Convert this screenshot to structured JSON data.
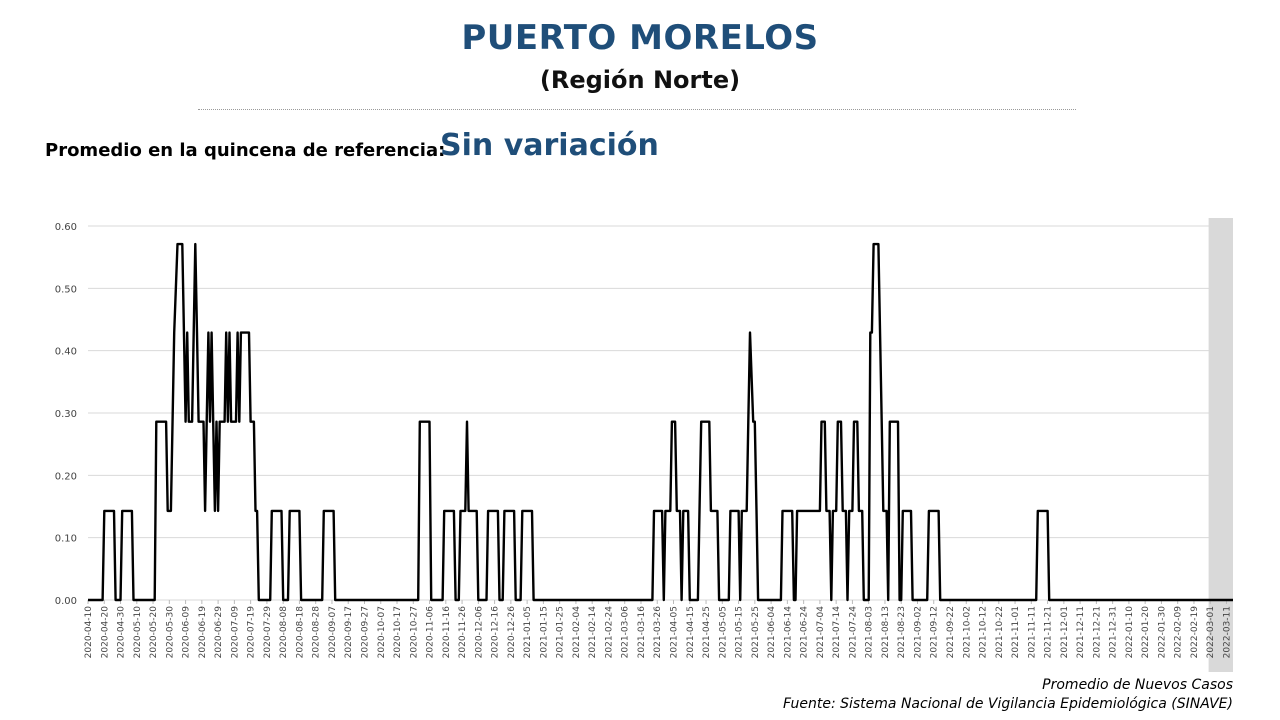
{
  "header": {
    "title": "PUERTO MORELOS",
    "subtitle": "(Región Norte)",
    "reference_label": "Promedio en la quincena de referencia:",
    "reference_value": "Sin variación"
  },
  "footer": {
    "series_label": "Promedio de Nuevos Casos",
    "source": "Fuente: Sistema Nacional de Vigilancia Epidemiológica (SINAVE)"
  },
  "colors": {
    "title": "#1f4e79",
    "line": "#000000",
    "grid": "#d9d9d9",
    "shade": "#d9d9d9"
  },
  "chart_data": {
    "type": "line",
    "title": "",
    "xlabel": "",
    "ylabel": "",
    "ylim": [
      0,
      0.6
    ],
    "yticks": [
      "0.00",
      "0.10",
      "0.20",
      "0.30",
      "0.40",
      "0.50",
      "0.60"
    ],
    "x_range": [
      "2020-04-10",
      "2022-03-15"
    ],
    "shaded_region": [
      "2022-02-28",
      "2022-03-15"
    ],
    "grid": "horizontal",
    "xtick_labels": [
      "2020-04-10",
      "2020-04-20",
      "2020-04-30",
      "2020-05-10",
      "2020-05-20",
      "2020-05-30",
      "2020-06-09",
      "2020-06-19",
      "2020-06-29",
      "2020-07-09",
      "2020-07-19",
      "2020-07-29",
      "2020-08-08",
      "2020-08-18",
      "2020-08-28",
      "2020-09-07",
      "2020-09-17",
      "2020-09-27",
      "2020-10-07",
      "2020-10-17",
      "2020-10-27",
      "2020-11-06",
      "2020-11-16",
      "2020-11-26",
      "2020-12-06",
      "2020-12-16",
      "2020-12-26",
      "2021-01-05",
      "2021-01-15",
      "2021-01-25",
      "2021-02-04",
      "2021-02-14",
      "2021-02-24",
      "2021-03-06",
      "2021-03-16",
      "2021-03-26",
      "2021-04-05",
      "2021-04-15",
      "2021-04-25",
      "2021-05-05",
      "2021-05-15",
      "2021-05-25",
      "2021-06-04",
      "2021-06-14",
      "2021-06-24",
      "2021-07-04",
      "2021-07-14",
      "2021-07-24",
      "2021-08-03",
      "2021-08-13",
      "2021-08-23",
      "2021-09-02",
      "2021-09-12",
      "2021-09-22",
      "2021-10-02",
      "2021-10-12",
      "2021-10-22",
      "2021-11-01",
      "2021-11-11",
      "2021-11-21",
      "2021-12-01",
      "2021-12-11",
      "2021-12-21",
      "2021-12-31",
      "2022-01-10",
      "2022-01-20",
      "2022-01-30",
      "2022-02-09",
      "2022-02-19",
      "2022-03-01",
      "2022-03-11"
    ],
    "series": [
      {
        "values": [
          [
            "2020-04-10",
            0
          ],
          [
            "2020-04-19",
            0
          ],
          [
            "2020-04-20",
            0.143
          ],
          [
            "2020-04-26",
            0.143
          ],
          [
            "2020-04-27",
            0
          ],
          [
            "2020-04-30",
            0
          ],
          [
            "2020-05-01",
            0.143
          ],
          [
            "2020-05-07",
            0.143
          ],
          [
            "2020-05-08",
            0
          ],
          [
            "2020-05-21",
            0
          ],
          [
            "2020-05-22",
            0.286
          ],
          [
            "2020-05-28",
            0.286
          ],
          [
            "2020-05-29",
            0.143
          ],
          [
            "2020-05-31",
            0.143
          ],
          [
            "2020-06-02",
            0.429
          ],
          [
            "2020-06-04",
            0.571
          ],
          [
            "2020-06-07",
            0.571
          ],
          [
            "2020-06-09",
            0.286
          ],
          [
            "2020-06-10",
            0.429
          ],
          [
            "2020-06-11",
            0.286
          ],
          [
            "2020-06-13",
            0.286
          ],
          [
            "2020-06-14",
            0.429
          ],
          [
            "2020-06-15",
            0.571
          ],
          [
            "2020-06-16",
            0.429
          ],
          [
            "2020-06-17",
            0.286
          ],
          [
            "2020-06-20",
            0.286
          ],
          [
            "2020-06-21",
            0.143
          ],
          [
            "2020-06-22",
            0.286
          ],
          [
            "2020-06-23",
            0.429
          ],
          [
            "2020-06-24",
            0.286
          ],
          [
            "2020-06-25",
            0.429
          ],
          [
            "2020-06-26",
            0.286
          ],
          [
            "2020-06-27",
            0.143
          ],
          [
            "2020-06-28",
            0.286
          ],
          [
            "2020-06-29",
            0.143
          ],
          [
            "2020-06-30",
            0.286
          ],
          [
            "2020-07-03",
            0.286
          ],
          [
            "2020-07-04",
            0.429
          ],
          [
            "2020-07-05",
            0.286
          ],
          [
            "2020-07-06",
            0.429
          ],
          [
            "2020-07-07",
            0.286
          ],
          [
            "2020-07-10",
            0.286
          ],
          [
            "2020-07-11",
            0.429
          ],
          [
            "2020-07-12",
            0.286
          ],
          [
            "2020-07-13",
            0.429
          ],
          [
            "2020-07-18",
            0.429
          ],
          [
            "2020-07-19",
            0.286
          ],
          [
            "2020-07-21",
            0.286
          ],
          [
            "2020-07-22",
            0.143
          ],
          [
            "2020-07-23",
            0.143
          ],
          [
            "2020-07-24",
            0
          ],
          [
            "2020-07-31",
            0
          ],
          [
            "2020-08-01",
            0.143
          ],
          [
            "2020-08-07",
            0.143
          ],
          [
            "2020-08-08",
            0
          ],
          [
            "2020-08-11",
            0
          ],
          [
            "2020-08-12",
            0.143
          ],
          [
            "2020-08-18",
            0.143
          ],
          [
            "2020-08-19",
            0
          ],
          [
            "2020-09-01",
            0
          ],
          [
            "2020-09-02",
            0.143
          ],
          [
            "2020-09-08",
            0.143
          ],
          [
            "2020-09-09",
            0
          ],
          [
            "2020-10-30",
            0
          ],
          [
            "2020-10-31",
            0.286
          ],
          [
            "2020-11-06",
            0.286
          ],
          [
            "2020-11-07",
            0
          ],
          [
            "2020-11-14",
            0
          ],
          [
            "2020-11-15",
            0.143
          ],
          [
            "2020-11-21",
            0.143
          ],
          [
            "2020-11-22",
            0
          ],
          [
            "2020-11-24",
            0
          ],
          [
            "2020-11-25",
            0.143
          ],
          [
            "2020-11-28",
            0.143
          ],
          [
            "2020-11-29",
            0.286
          ],
          [
            "2020-11-30",
            0.143
          ],
          [
            "2020-12-05",
            0.143
          ],
          [
            "2020-12-06",
            0
          ],
          [
            "2020-12-11",
            0
          ],
          [
            "2020-12-12",
            0.143
          ],
          [
            "2020-12-18",
            0.143
          ],
          [
            "2020-12-19",
            0
          ],
          [
            "2020-12-21",
            0
          ],
          [
            "2020-12-22",
            0.143
          ],
          [
            "2020-12-28",
            0.143
          ],
          [
            "2020-12-29",
            0
          ],
          [
            "2021-01-01",
            0
          ],
          [
            "2021-01-02",
            0.143
          ],
          [
            "2021-01-08",
            0.143
          ],
          [
            "2021-01-09",
            0
          ],
          [
            "2021-03-23",
            0
          ],
          [
            "2021-03-24",
            0.143
          ],
          [
            "2021-03-29",
            0.143
          ],
          [
            "2021-03-30",
            0
          ],
          [
            "2021-03-31",
            0.143
          ],
          [
            "2021-04-03",
            0.143
          ],
          [
            "2021-04-04",
            0.286
          ],
          [
            "2021-04-06",
            0.286
          ],
          [
            "2021-04-07",
            0.143
          ],
          [
            "2021-04-09",
            0.143
          ],
          [
            "2021-04-10",
            0
          ],
          [
            "2021-04-11",
            0.143
          ],
          [
            "2021-04-14",
            0.143
          ],
          [
            "2021-04-15",
            0
          ],
          [
            "2021-04-20",
            0
          ],
          [
            "2021-04-21",
            0.143
          ],
          [
            "2021-04-22",
            0.286
          ],
          [
            "2021-04-27",
            0.286
          ],
          [
            "2021-04-28",
            0.143
          ],
          [
            "2021-05-02",
            0.143
          ],
          [
            "2021-05-03",
            0
          ],
          [
            "2021-05-09",
            0
          ],
          [
            "2021-05-10",
            0.143
          ],
          [
            "2021-05-15",
            0.143
          ],
          [
            "2021-05-16",
            0
          ],
          [
            "2021-05-17",
            0.143
          ],
          [
            "2021-05-18",
            0.143
          ],
          [
            "2021-05-20",
            0.143
          ],
          [
            "2021-05-21",
            0.286
          ],
          [
            "2021-05-22",
            0.429
          ],
          [
            "2021-05-24",
            0.286
          ],
          [
            "2021-05-25",
            0.286
          ],
          [
            "2021-05-26",
            0.143
          ],
          [
            "2021-05-27",
            0
          ],
          [
            "2021-06-10",
            0
          ],
          [
            "2021-06-11",
            0.143
          ],
          [
            "2021-06-17",
            0.143
          ],
          [
            "2021-06-18",
            0
          ],
          [
            "2021-06-19",
            0
          ],
          [
            "2021-06-20",
            0.143
          ],
          [
            "2021-07-04",
            0.143
          ],
          [
            "2021-07-05",
            0.286
          ],
          [
            "2021-07-07",
            0.286
          ],
          [
            "2021-07-08",
            0.143
          ],
          [
            "2021-07-10",
            0.143
          ],
          [
            "2021-07-11",
            0
          ],
          [
            "2021-07-12",
            0.143
          ],
          [
            "2021-07-14",
            0.143
          ],
          [
            "2021-07-15",
            0.286
          ],
          [
            "2021-07-17",
            0.286
          ],
          [
            "2021-07-18",
            0.143
          ],
          [
            "2021-07-20",
            0.143
          ],
          [
            "2021-07-21",
            0
          ],
          [
            "2021-07-22",
            0.143
          ],
          [
            "2021-07-24",
            0.143
          ],
          [
            "2021-07-25",
            0.286
          ],
          [
            "2021-07-27",
            0.286
          ],
          [
            "2021-07-28",
            0.143
          ],
          [
            "2021-07-30",
            0.143
          ],
          [
            "2021-07-31",
            0
          ],
          [
            "2021-08-03",
            0
          ],
          [
            "2021-08-04",
            0.429
          ],
          [
            "2021-08-05",
            0.429
          ],
          [
            "2021-08-06",
            0.571
          ],
          [
            "2021-08-09",
            0.571
          ],
          [
            "2021-08-11",
            0.286
          ],
          [
            "2021-08-12",
            0.143
          ],
          [
            "2021-08-14",
            0.143
          ],
          [
            "2021-08-15",
            0
          ],
          [
            "2021-08-16",
            0.286
          ],
          [
            "2021-08-21",
            0.286
          ],
          [
            "2021-08-22",
            0
          ],
          [
            "2021-08-23",
            0
          ],
          [
            "2021-08-24",
            0.143
          ],
          [
            "2021-08-29",
            0.143
          ],
          [
            "2021-08-30",
            0
          ],
          [
            "2021-09-08",
            0
          ],
          [
            "2021-09-09",
            0.143
          ],
          [
            "2021-09-15",
            0.143
          ],
          [
            "2021-09-16",
            0
          ],
          [
            "2021-11-14",
            0
          ],
          [
            "2021-11-15",
            0.143
          ],
          [
            "2021-11-21",
            0.143
          ],
          [
            "2021-11-22",
            0
          ],
          [
            "2022-03-15",
            0
          ]
        ]
      }
    ]
  }
}
